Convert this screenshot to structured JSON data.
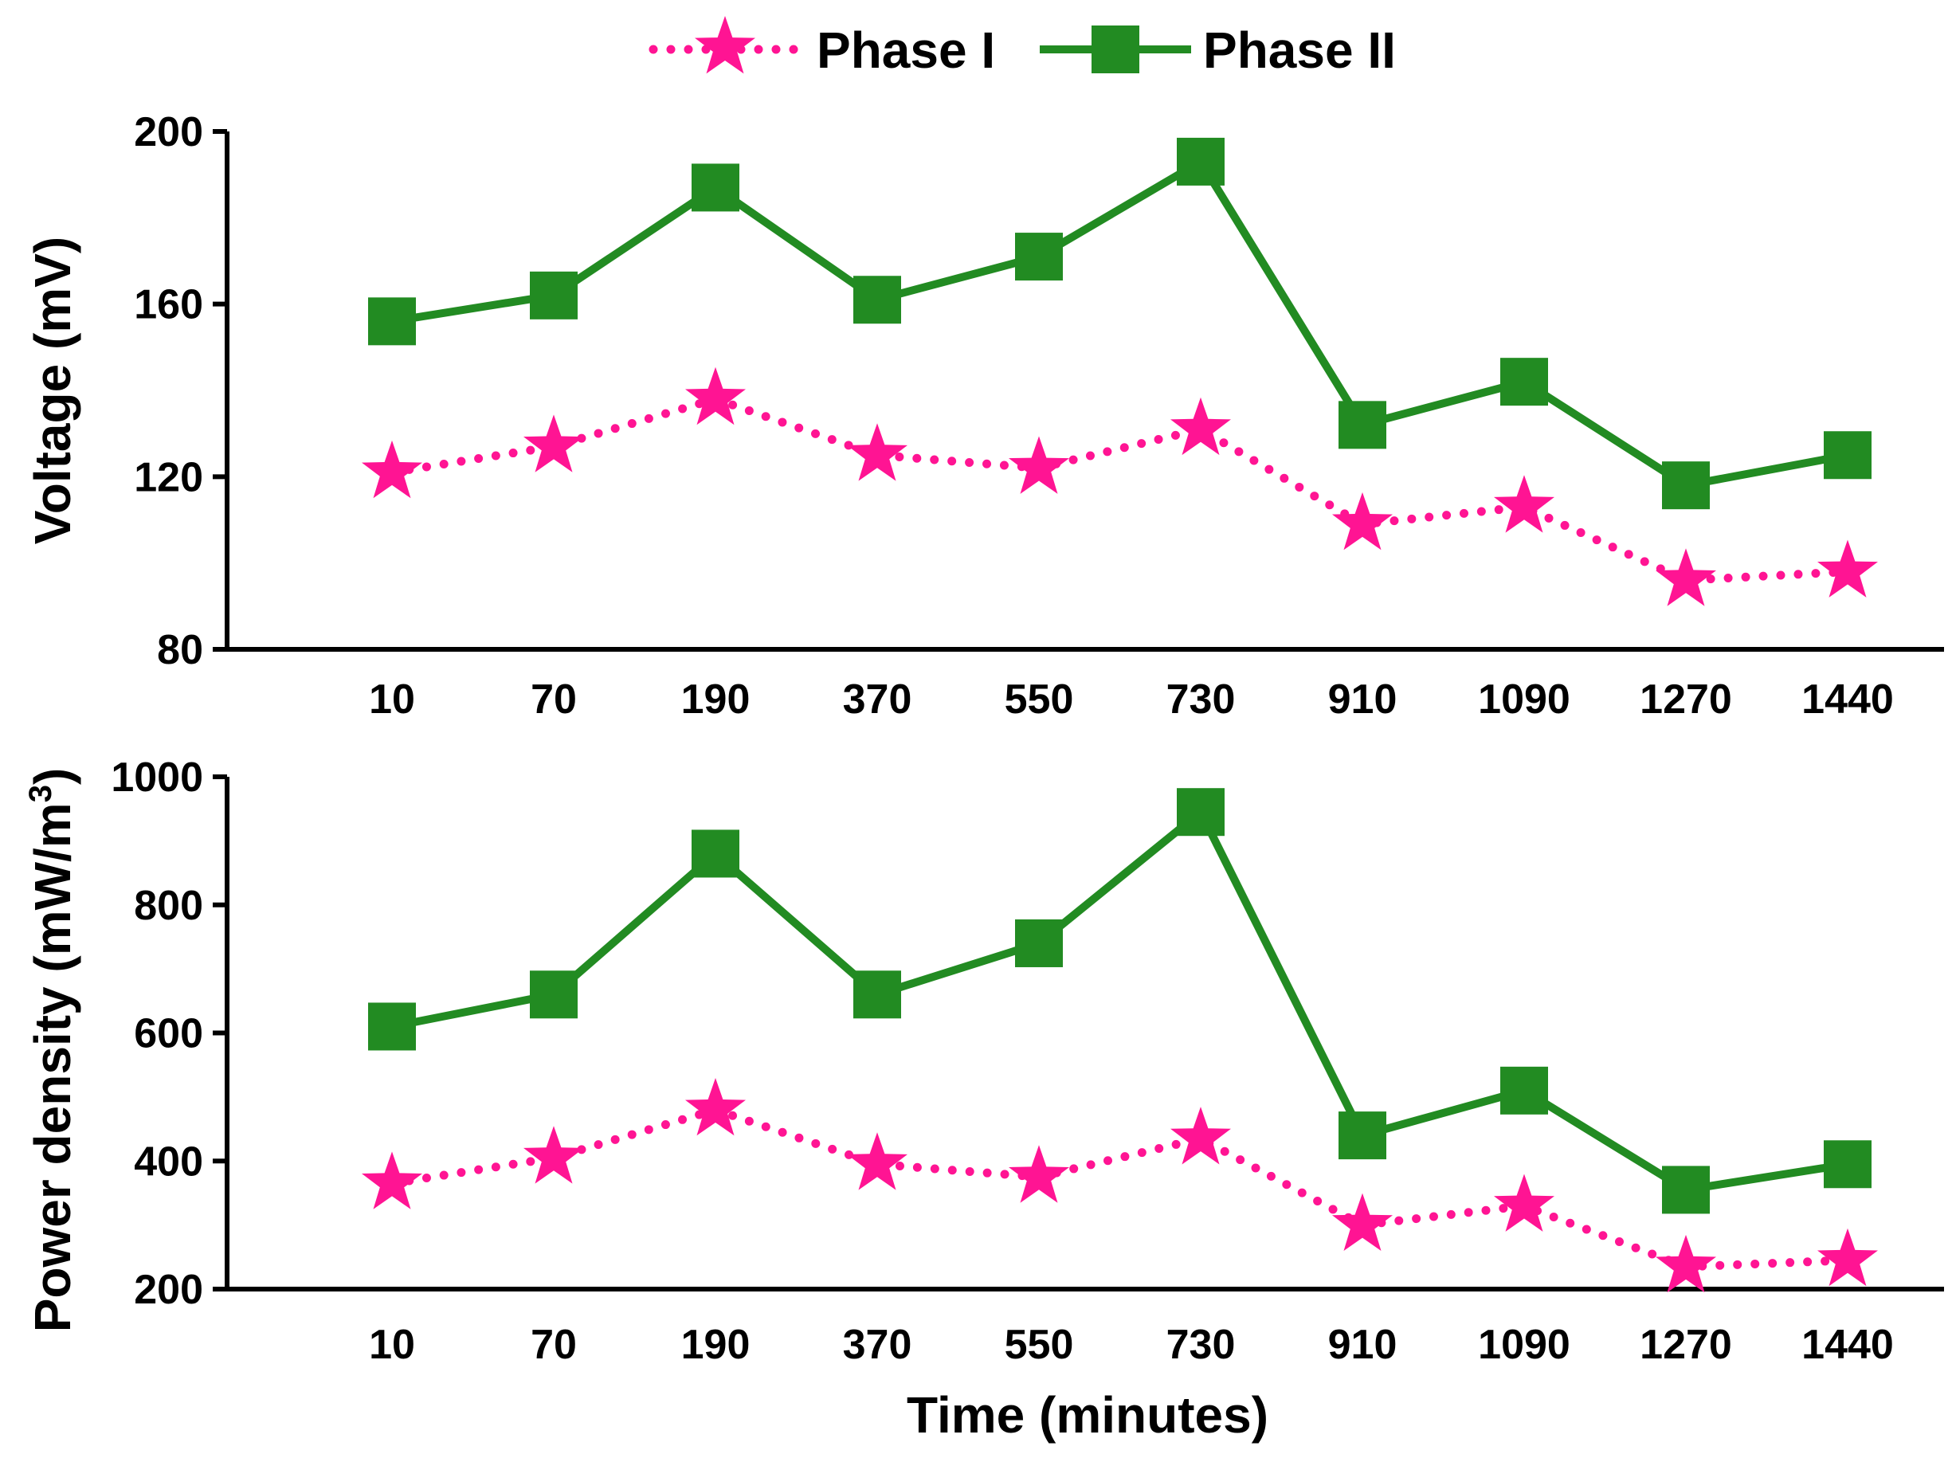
{
  "legend": {
    "phase1": "Phase I",
    "phase2": "Phase II"
  },
  "colors": {
    "phase1": "#ff1493",
    "phase2": "#228b22",
    "axis": "#000000"
  },
  "xlabel": "Time (minutes)",
  "chart_data": [
    {
      "type": "line",
      "title": "",
      "xlabel": "",
      "ylabel": "Voltage (mV)",
      "categories": [
        "10",
        "70",
        "190",
        "370",
        "550",
        "730",
        "910",
        "1090",
        "1270",
        "1440"
      ],
      "ylim": [
        80,
        200
      ],
      "yticks": [
        80,
        120,
        160,
        200
      ],
      "series": [
        {
          "name": "Phase I",
          "marker": "star",
          "line": "dotted",
          "values": [
            121,
            127,
            138,
            125,
            122,
            131,
            109,
            113,
            96,
            98
          ]
        },
        {
          "name": "Phase II",
          "marker": "square",
          "line": "solid",
          "values": [
            156,
            162,
            187,
            161,
            171,
            193,
            132,
            142,
            118,
            125
          ]
        }
      ]
    },
    {
      "type": "line",
      "title": "",
      "xlabel": "Time (minutes)",
      "ylabel": "Power density (mW/m",
      "ylabel_sup": "3",
      "ylabel_close": ")",
      "categories": [
        "10",
        "70",
        "190",
        "370",
        "550",
        "730",
        "910",
        "1090",
        "1270",
        "1440"
      ],
      "ylim": [
        200,
        1000
      ],
      "yticks": [
        200,
        400,
        600,
        800,
        1000
      ],
      "series": [
        {
          "name": "Phase I",
          "marker": "star",
          "line": "dotted",
          "values": [
            365,
            405,
            480,
            395,
            375,
            435,
            300,
            330,
            235,
            245
          ]
        },
        {
          "name": "Phase II",
          "marker": "square",
          "line": "solid",
          "values": [
            610,
            660,
            880,
            660,
            740,
            945,
            440,
            510,
            355,
            395
          ]
        }
      ]
    }
  ]
}
